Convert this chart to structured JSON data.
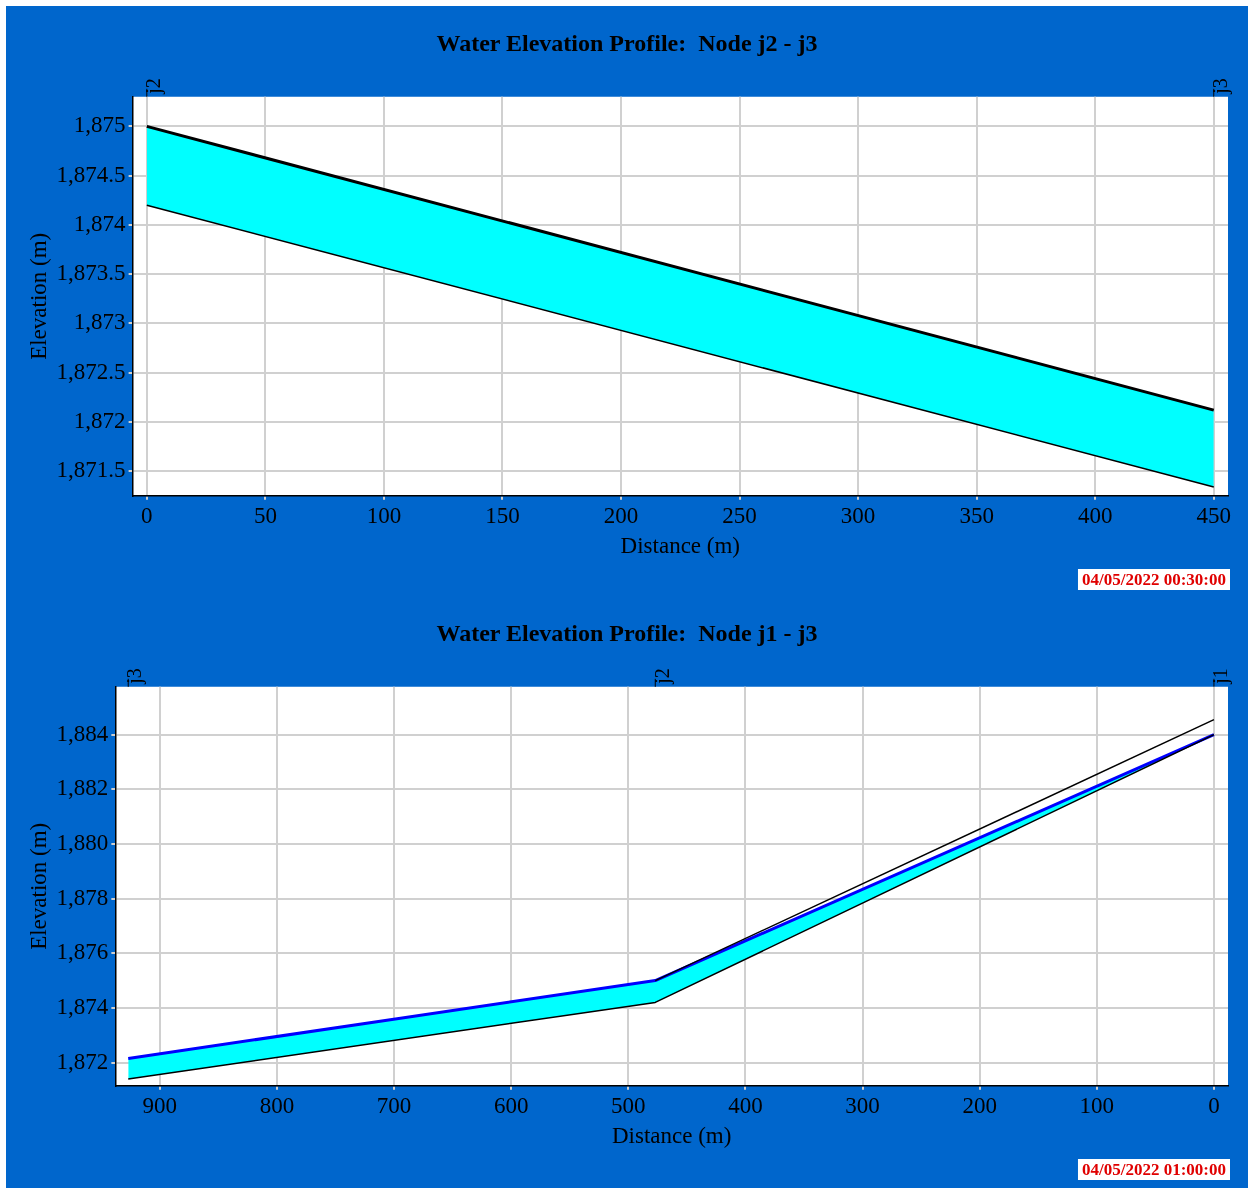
{
  "chart_data": [
    {
      "type": "line",
      "title": "Water Elevation Profile:  Node j2 - j3",
      "xlabel": "Distance (m)",
      "ylabel": "Elevation (m)",
      "series": [
        {
          "type": "line",
          "color": "#000000",
          "x": [
            0,
            450
          ],
          "values": [
            1875.0,
            1872.12
          ],
          "lower": [
            1874.2,
            1871.34
          ],
          "upper": [
            1875.0,
            1872.12
          ]
        },
        {
          "type": "line",
          "color": "#000000",
          "x": [
            0,
            450
          ],
          "values": [
            1874.2,
            1871.34
          ]
        }
      ],
      "xlim": [
        -6,
        456
      ],
      "ylim": [
        1871.25,
        1875.3
      ],
      "xticks": [
        0,
        50,
        100,
        150,
        200,
        250,
        300,
        350,
        400,
        450
      ],
      "yticks": [
        {
          "value": 1871.5,
          "label": "1,871.5"
        },
        {
          "value": 1872,
          "label": "1,872"
        },
        {
          "value": 1872.5,
          "label": "1,872.5"
        },
        {
          "value": 1873,
          "label": "1,873"
        },
        {
          "value": 1873.5,
          "label": "1,873.5"
        },
        {
          "value": 1874,
          "label": "1,874"
        },
        {
          "value": 1874.5,
          "label": "1,874.5"
        },
        {
          "value": 1875,
          "label": "1,875"
        }
      ],
      "grid": true,
      "ref_lines": [
        {
          "axis": "x",
          "value": 0,
          "label": "j2"
        },
        {
          "axis": "x",
          "value": 450,
          "label": "j3"
        }
      ],
      "annotations": [
        "04/05/2022 00:30:00"
      ]
    },
    {
      "type": "line",
      "title": "Water Elevation Profile:  Node j1 - j3",
      "xlabel": "Distance (m)",
      "ylabel": "Elevation (m)",
      "series": [
        {
          "type": "line",
          "color": "#0000ff",
          "x": [
            927,
            477,
            0
          ],
          "values": [
            1872.15,
            1875.0,
            1884.0
          ],
          "lower": [
            1871.4,
            1874.2,
            1884.0
          ],
          "upper": [
            1872.15,
            1875.0,
            1884.0
          ]
        },
        {
          "type": "line",
          "color": "#000000",
          "x": [
            927,
            477,
            0
          ],
          "values": [
            1871.4,
            1874.2,
            1884.0
          ]
        },
        {
          "type": "line",
          "color": "#000000",
          "x": [
            477,
            0
          ],
          "values": [
            1875.0,
            1884.55
          ]
        }
      ],
      "xlim": [
        938,
        -12
      ],
      "ylim": [
        1871.15,
        1885.75
      ],
      "xticks": [
        900,
        800,
        700,
        600,
        500,
        400,
        300,
        200,
        100,
        0
      ],
      "yticks": [
        {
          "value": 1872,
          "label": "1,872"
        },
        {
          "value": 1874,
          "label": "1,874"
        },
        {
          "value": 1876,
          "label": "1,876"
        },
        {
          "value": 1878,
          "label": "1,878"
        },
        {
          "value": 1880,
          "label": "1,880"
        },
        {
          "value": 1882,
          "label": "1,882"
        },
        {
          "value": 1884,
          "label": "1,884"
        }
      ],
      "grid": true,
      "ref_lines": [
        {
          "axis": "x",
          "value": 927,
          "label": "j3"
        },
        {
          "axis": "x",
          "value": 477,
          "label": "j2"
        },
        {
          "axis": "x",
          "value": 0,
          "label": "j1"
        }
      ],
      "annotations": [
        "04/05/2022 01:00:00"
      ]
    }
  ]
}
